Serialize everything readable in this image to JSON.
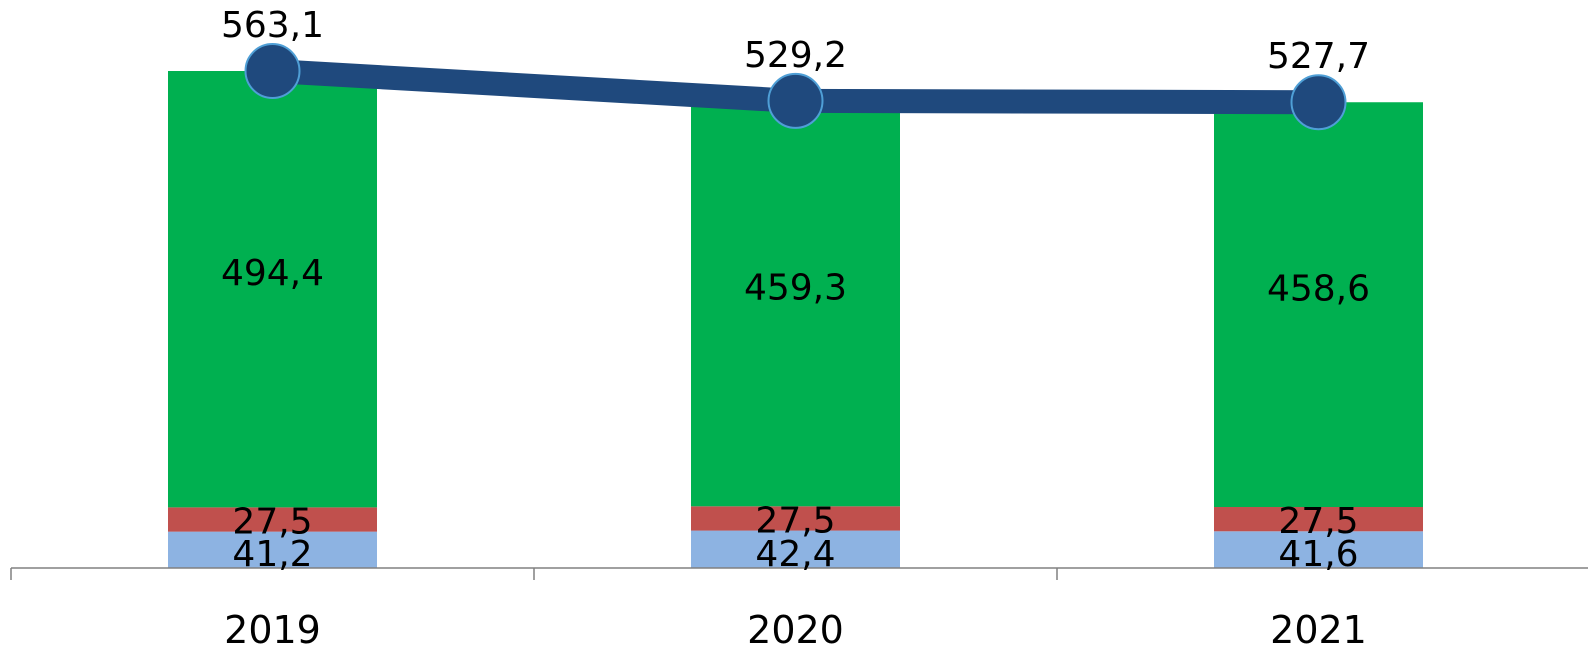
{
  "chart_data": {
    "type": "bar",
    "stacked": true,
    "categories": [
      "2019",
      "2020",
      "2021"
    ],
    "series": [
      {
        "kind": "bar",
        "color": "#8db3e2",
        "values": [
          41.2,
          42.4,
          41.6
        ],
        "labels": [
          "41,2",
          "42,4",
          "41,6"
        ]
      },
      {
        "kind": "bar",
        "color": "#c0504d",
        "values": [
          27.5,
          27.5,
          27.5
        ],
        "labels": [
          "27,5",
          "27,5",
          "27,5"
        ]
      },
      {
        "kind": "bar",
        "color": "#00b050",
        "values": [
          494.4,
          459.3,
          458.6
        ],
        "labels": [
          "494,4",
          "459,3",
          "458,6"
        ]
      },
      {
        "kind": "line",
        "color": "#1f497d",
        "marker_color": "#1f497d",
        "values": [
          563.1,
          529.2,
          527.7
        ],
        "labels": [
          "563,1",
          "529,2",
          "527,7"
        ]
      }
    ],
    "title": "",
    "xlabel": "",
    "ylabel": "",
    "ylim": [
      0,
      575
    ],
    "grid": false,
    "legend": "none"
  }
}
